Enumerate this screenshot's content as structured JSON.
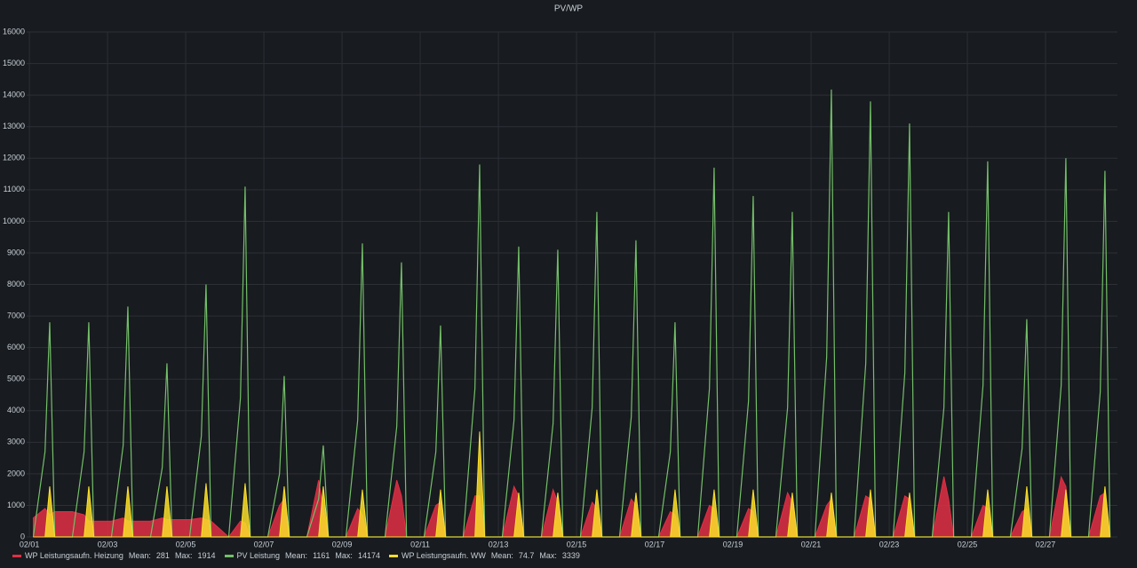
{
  "chart_data": {
    "type": "timeseries",
    "title": "PV/WP",
    "x": [
      0.1,
      0.4,
      0.52,
      0.65,
      1.1,
      1.4,
      1.52,
      1.65,
      2.1,
      2.4,
      2.52,
      2.65,
      3.1,
      3.4,
      3.52,
      3.65,
      4.1,
      4.4,
      4.52,
      4.65,
      5.1,
      5.4,
      5.52,
      5.65,
      6.1,
      6.4,
      6.52,
      6.65,
      7.1,
      7.4,
      7.52,
      7.65,
      8.1,
      8.4,
      8.52,
      8.65,
      9.1,
      9.4,
      9.52,
      9.65,
      10.1,
      10.4,
      10.52,
      10.65,
      11.1,
      11.4,
      11.52,
      11.65,
      12.1,
      12.4,
      12.52,
      12.65,
      13.1,
      13.4,
      13.52,
      13.65,
      14.1,
      14.4,
      14.52,
      14.65,
      15.1,
      15.4,
      15.52,
      15.65,
      16.1,
      16.4,
      16.52,
      16.65,
      17.1,
      17.4,
      17.52,
      17.65,
      18.1,
      18.4,
      18.52,
      18.65,
      19.1,
      19.4,
      19.52,
      19.65,
      20.1,
      20.4,
      20.52,
      20.65,
      21.1,
      21.4,
      21.52,
      21.65,
      22.1,
      22.4,
      22.52,
      22.65,
      23.1,
      23.4,
      23.52,
      23.65,
      24.1,
      24.4,
      24.52,
      24.65,
      25.1,
      25.4,
      25.52,
      25.65,
      26.1,
      26.4,
      26.52,
      26.65,
      27.1,
      27.4,
      27.52,
      27.65
    ],
    "series": [
      {
        "name": "WP Leistungsaufn. Heizung",
        "color": "#e02f44",
        "style": "area",
        "mean": 281,
        "max": 1914,
        "values": [
          600,
          900,
          700,
          800,
          800,
          700,
          500,
          500,
          500,
          600,
          500,
          500,
          500,
          600,
          550,
          550,
          550,
          600,
          550,
          500,
          0,
          500,
          450,
          0,
          0,
          1000,
          1200,
          0,
          0,
          1800,
          900,
          0,
          0,
          900,
          700,
          0,
          0,
          1800,
          1300,
          0,
          0,
          1000,
          1100,
          0,
          0,
          1300,
          1300,
          0,
          0,
          1600,
          1300,
          0,
          0,
          1500,
          1100,
          0,
          0,
          1100,
          900,
          0,
          0,
          1200,
          1000,
          0,
          0,
          800,
          700,
          0,
          0,
          1000,
          900,
          0,
          0,
          900,
          800,
          0,
          0,
          1400,
          1100,
          0,
          0,
          1000,
          1200,
          0,
          0,
          1300,
          1200,
          0,
          0,
          1300,
          1200,
          0,
          0,
          1914,
          1200,
          0,
          0,
          1000,
          900,
          0,
          0,
          800,
          900,
          0,
          0,
          1900,
          1600,
          0,
          0,
          1300,
          1400,
          0
        ]
      },
      {
        "name": "PV Leistung",
        "color": "#73bf69",
        "style": "line",
        "mean": 1161,
        "max": 14174,
        "values": [
          0,
          2700,
          6800,
          0,
          0,
          2700,
          6800,
          0,
          0,
          2900,
          7300,
          0,
          0,
          2200,
          5500,
          0,
          0,
          3200,
          8000,
          0,
          0,
          4400,
          11100,
          0,
          0,
          2000,
          5100,
          0,
          0,
          1200,
          2900,
          0,
          0,
          3700,
          9300,
          0,
          0,
          3500,
          8700,
          0,
          0,
          2700,
          6700,
          0,
          0,
          4700,
          11800,
          0,
          0,
          3700,
          9200,
          0,
          0,
          3600,
          9100,
          0,
          0,
          4100,
          10300,
          0,
          0,
          3800,
          9400,
          0,
          0,
          2700,
          6800,
          0,
          0,
          4700,
          11700,
          0,
          0,
          4300,
          10800,
          0,
          0,
          4100,
          10300,
          0,
          0,
          5700,
          14174,
          0,
          0,
          5500,
          13800,
          0,
          0,
          5200,
          13100,
          0,
          0,
          4100,
          10300,
          0,
          0,
          4800,
          11900,
          0,
          0,
          2800,
          6900,
          0,
          0,
          4800,
          12000,
          0,
          0,
          4600,
          11600,
          0
        ]
      },
      {
        "name": "WP Leistungsaufn. WW",
        "color": "#fade2a",
        "style": "area",
        "mean": 74.7,
        "max": 3339,
        "values": [
          0,
          0,
          1600,
          0,
          0,
          0,
          1600,
          0,
          0,
          0,
          1600,
          0,
          0,
          0,
          1600,
          0,
          0,
          0,
          1700,
          0,
          0,
          0,
          1700,
          0,
          0,
          0,
          1600,
          0,
          0,
          0,
          1600,
          0,
          0,
          0,
          1500,
          0,
          0,
          0,
          0,
          0,
          0,
          0,
          1500,
          0,
          0,
          0,
          3339,
          0,
          0,
          0,
          1400,
          0,
          0,
          0,
          1400,
          0,
          0,
          0,
          1500,
          0,
          0,
          0,
          1400,
          0,
          0,
          0,
          1500,
          0,
          0,
          0,
          1500,
          0,
          0,
          0,
          1500,
          0,
          0,
          0,
          1400,
          0,
          0,
          0,
          1400,
          0,
          0,
          0,
          1500,
          0,
          0,
          0,
          1400,
          0,
          0,
          0,
          0,
          0,
          0,
          0,
          1500,
          0,
          0,
          0,
          1600,
          0,
          0,
          0,
          1500,
          0,
          0,
          0,
          1600,
          0
        ]
      }
    ],
    "legend_stat_labels": [
      "Mean:",
      "Max:"
    ],
    "xlim": [
      -0.07,
      27.84
    ],
    "xticks": [
      {
        "value": 0,
        "label": "02/01"
      },
      {
        "value": 2,
        "label": "02/03"
      },
      {
        "value": 4,
        "label": "02/05"
      },
      {
        "value": 6,
        "label": "02/07"
      },
      {
        "value": 8,
        "label": "02/09"
      },
      {
        "value": 10,
        "label": "02/11"
      },
      {
        "value": 12,
        "label": "02/13"
      },
      {
        "value": 14,
        "label": "02/15"
      },
      {
        "value": 16,
        "label": "02/17"
      },
      {
        "value": 18,
        "label": "02/19"
      },
      {
        "value": 20,
        "label": "02/21"
      },
      {
        "value": 22,
        "label": "02/23"
      },
      {
        "value": 24,
        "label": "02/25"
      },
      {
        "value": 26,
        "label": "02/27"
      }
    ],
    "ylim": [
      0,
      16000
    ],
    "yticks": [
      0,
      1000,
      2000,
      3000,
      4000,
      5000,
      6000,
      7000,
      8000,
      9000,
      10000,
      11000,
      12000,
      13000,
      14000,
      15000,
      16000
    ],
    "grid": true
  }
}
